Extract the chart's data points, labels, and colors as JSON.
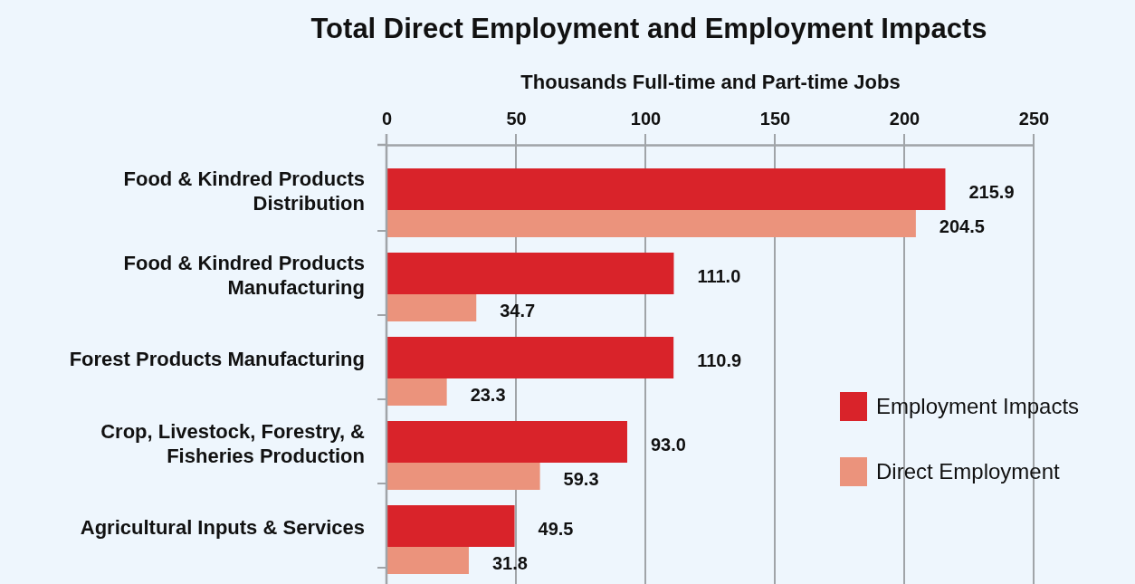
{
  "chart_data": {
    "type": "bar",
    "orientation": "horizontal",
    "title": "Total Direct Employment and Employment Impacts",
    "xlabel": "Thousands Full-time and Part-time Jobs",
    "categories": [
      "Food & Kindred Products Distribution",
      "Food & Kindred Products Manufacturing",
      "Forest Products Manufacturing",
      "Crop, Livestock, Forestry, & Fisheries Production",
      "Agricultural Inputs & Services"
    ],
    "series": [
      {
        "name": "Employment Impacts",
        "color": "#d9232a",
        "values": [
          215.9,
          111.0,
          110.9,
          93.0,
          49.5
        ],
        "value_labels": [
          "215.9",
          "111.0",
          "110.9",
          "93.0",
          "49.5"
        ]
      },
      {
        "name": "Direct Employment",
        "color": "#eb937c",
        "values": [
          204.5,
          34.7,
          23.3,
          59.3,
          31.8
        ],
        "value_labels": [
          "204.5",
          "34.7",
          "23.3",
          "59.3",
          "31.8"
        ]
      }
    ],
    "xlim": [
      0,
      250
    ],
    "xticks": [
      0,
      50,
      100,
      150,
      200,
      250
    ],
    "grid": "x",
    "legend": "right"
  }
}
